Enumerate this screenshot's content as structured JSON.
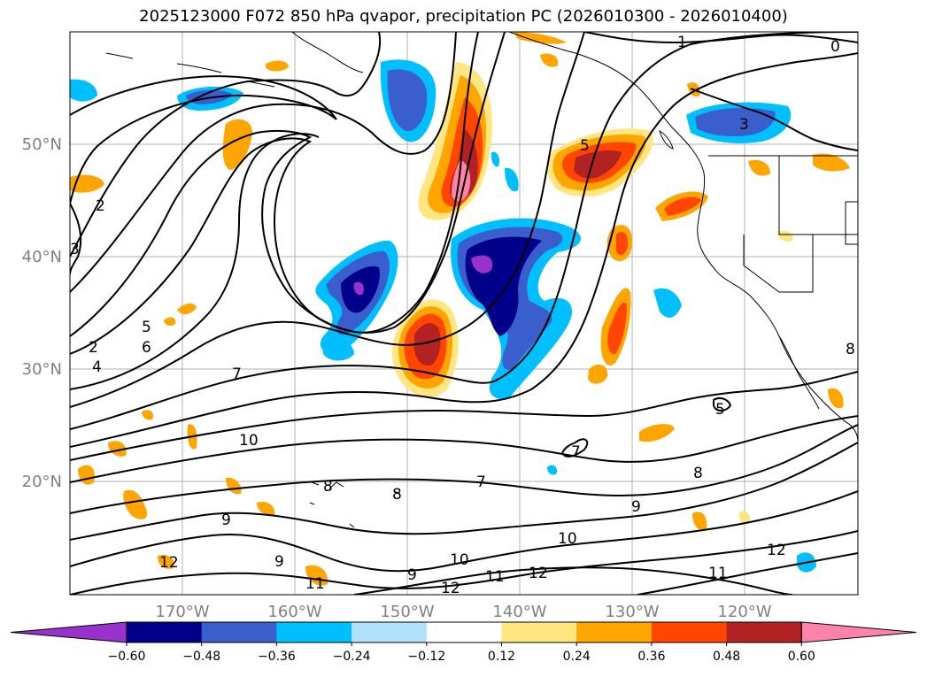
{
  "title": "2025123000 F072 850 hPa qvapor, precipitation PC (2026010300 - 2026010400)",
  "lat_labels": [
    "50°N",
    "40°N",
    "30°N",
    "20°N"
  ],
  "lon_labels": [
    "170°W",
    "160°W",
    "150°W",
    "140°W",
    "130°W",
    "120°W"
  ],
  "colorbar": {
    "ticks": [
      "−0.60",
      "−0.48",
      "−0.36",
      "−0.24",
      "−0.12",
      "0.12",
      "0.24",
      "0.36",
      "0.48",
      "0.60"
    ],
    "colors": [
      "#9932cc",
      "#00008b",
      "#3a5fcd",
      "#00bfff",
      "#b0e0fa",
      "#ffffff",
      "#ffe680",
      "#ffa500",
      "#ff4500",
      "#b22222",
      "#ff82ab"
    ]
  },
  "contour_labels": [
    "1",
    "0",
    "3",
    "5",
    "2",
    "3",
    "2",
    "4",
    "5",
    "6",
    "7",
    "10",
    "9",
    "8",
    "8",
    "7",
    "9",
    "10",
    "11",
    "12",
    "12",
    "9",
    "10",
    "11",
    "12",
    "8",
    "5",
    "8",
    "9",
    "11",
    "12",
    "7"
  ]
}
